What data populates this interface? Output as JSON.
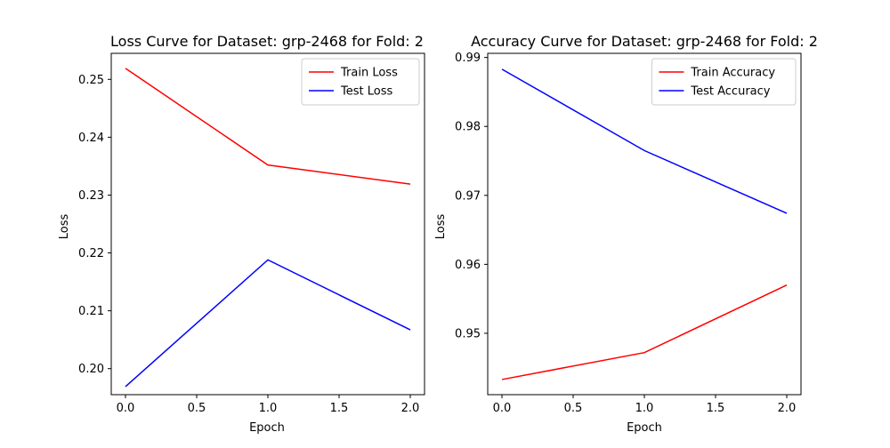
{
  "chart_data": [
    {
      "type": "line",
      "title": "Loss Curve for Dataset: grp-2468 for Fold: 2",
      "xlabel": "Epoch",
      "ylabel": "Loss",
      "x": [
        0.0,
        1.0,
        2.0
      ],
      "xlim": [
        -0.1,
        2.1
      ],
      "ylim": [
        0.1955,
        0.2545
      ],
      "xticks": [
        0.0,
        0.5,
        1.0,
        1.5,
        2.0
      ],
      "xtick_labels": [
        "0.0",
        "0.5",
        "1.0",
        "1.5",
        "2.0"
      ],
      "yticks": [
        0.2,
        0.21,
        0.22,
        0.23,
        0.24,
        0.25
      ],
      "ytick_labels": [
        "0.20",
        "0.21",
        "0.22",
        "0.23",
        "0.24",
        "0.25"
      ],
      "grid": false,
      "legend_position": "top-right",
      "series": [
        {
          "name": "Train Loss",
          "color": "#ff0000",
          "values": [
            0.2519,
            0.2352,
            0.2319
          ]
        },
        {
          "name": "Test Loss",
          "color": "#0000ff",
          "values": [
            0.1969,
            0.2188,
            0.2067
          ]
        }
      ]
    },
    {
      "type": "line",
      "title": "Accuracy Curve for Dataset: grp-2468 for Fold: 2",
      "xlabel": "Epoch",
      "ylabel": "Loss",
      "x": [
        0.0,
        1.0,
        2.0
      ],
      "xlim": [
        -0.1,
        2.1
      ],
      "ylim": [
        0.9411,
        0.9906
      ],
      "xticks": [
        0.0,
        0.5,
        1.0,
        1.5,
        2.0
      ],
      "xtick_labels": [
        "0.0",
        "0.5",
        "1.0",
        "1.5",
        "2.0"
      ],
      "yticks": [
        0.95,
        0.96,
        0.97,
        0.98,
        0.99
      ],
      "ytick_labels": [
        "0.95",
        "0.96",
        "0.97",
        "0.98",
        "0.99"
      ],
      "grid": false,
      "legend_position": "top-right",
      "series": [
        {
          "name": "Train Accuracy",
          "color": "#ff0000",
          "values": [
            0.9433,
            0.9472,
            0.957
          ]
        },
        {
          "name": "Test Accuracy",
          "color": "#0000ff",
          "values": [
            0.9883,
            0.9765,
            0.9674
          ]
        }
      ]
    }
  ]
}
